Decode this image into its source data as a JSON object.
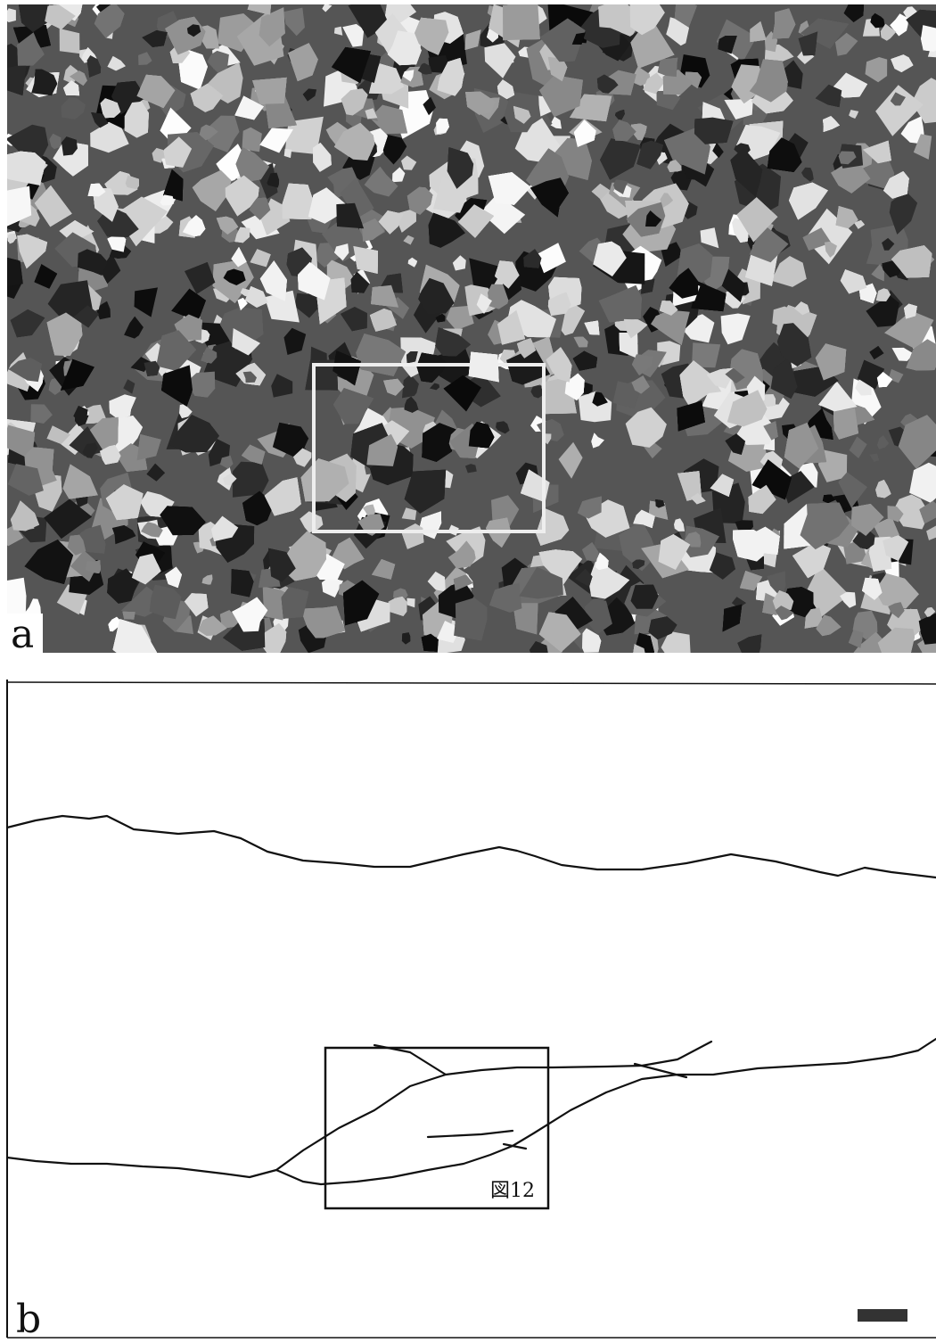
{
  "panel_a": {
    "label": "a"
  },
  "panel_b": {
    "label": "b",
    "box_label": "図12"
  }
}
